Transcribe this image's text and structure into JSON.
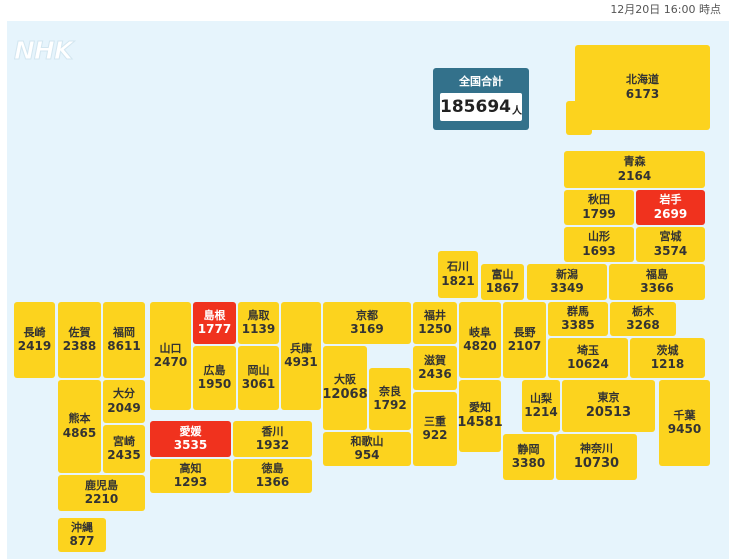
{
  "timestamp": "12月20日 16:00 時点",
  "logo": "NHK",
  "total": {
    "label": "全国合計",
    "value": "185694",
    "unit": "人"
  },
  "colors": {
    "default": "#fcd31e",
    "highlight": "#f0321e",
    "background": "#e6f4fc",
    "total_box": "#33718b"
  },
  "prefectures": {
    "hokkaido": {
      "name": "北海道",
      "value": "6173"
    },
    "aomori": {
      "name": "青森",
      "value": "2164"
    },
    "akita": {
      "name": "秋田",
      "value": "1799"
    },
    "iwate": {
      "name": "岩手",
      "value": "2699",
      "highlight": true
    },
    "yamagata": {
      "name": "山形",
      "value": "1693"
    },
    "miyagi": {
      "name": "宮城",
      "value": "3574"
    },
    "ishikawa": {
      "name": "石川",
      "value": "1821"
    },
    "toyama": {
      "name": "富山",
      "value": "1867"
    },
    "niigata": {
      "name": "新潟",
      "value": "3349"
    },
    "fukushima": {
      "name": "福島",
      "value": "3366"
    },
    "nagasaki": {
      "name": "長崎",
      "value": "2419"
    },
    "saga": {
      "name": "佐賀",
      "value": "2388"
    },
    "fukuoka": {
      "name": "福岡",
      "value": "8611"
    },
    "yamaguchi": {
      "name": "山口",
      "value": "2470"
    },
    "shimane": {
      "name": "島根",
      "value": "1777",
      "highlight": true
    },
    "tottori": {
      "name": "鳥取",
      "value": "1139"
    },
    "hyogo": {
      "name": "兵庫",
      "value": "4931"
    },
    "kyoto": {
      "name": "京都",
      "value": "3169"
    },
    "fukui": {
      "name": "福井",
      "value": "1250"
    },
    "gifu": {
      "name": "岐阜",
      "value": "4820"
    },
    "nagano": {
      "name": "長野",
      "value": "2107"
    },
    "gunma": {
      "name": "群馬",
      "value": "3385"
    },
    "tochigi": {
      "name": "栃木",
      "value": "3268"
    },
    "hiroshima": {
      "name": "広島",
      "value": "1950"
    },
    "okayama": {
      "name": "岡山",
      "value": "3061"
    },
    "osaka": {
      "name": "大阪",
      "value": "12068"
    },
    "shiga": {
      "name": "滋賀",
      "value": "2436"
    },
    "saitama": {
      "name": "埼玉",
      "value": "10624"
    },
    "ibaraki": {
      "name": "茨城",
      "value": "1218"
    },
    "oita": {
      "name": "大分",
      "value": "2049"
    },
    "kumamoto": {
      "name": "熊本",
      "value": "4865"
    },
    "nara": {
      "name": "奈良",
      "value": "1792"
    },
    "aichi": {
      "name": "愛知",
      "value": "14581"
    },
    "yamanashi": {
      "name": "山梨",
      "value": "1214"
    },
    "tokyo": {
      "name": "東京",
      "value": "20513"
    },
    "chiba": {
      "name": "千葉",
      "value": "9450"
    },
    "miyazaki": {
      "name": "宮崎",
      "value": "2435"
    },
    "ehime": {
      "name": "愛媛",
      "value": "3535",
      "highlight": true
    },
    "kagawa": {
      "name": "香川",
      "value": "1932"
    },
    "mie": {
      "name": "三重",
      "value": "922"
    },
    "wakayama": {
      "name": "和歌山",
      "value": "954"
    },
    "kochi": {
      "name": "高知",
      "value": "1293"
    },
    "tokushima": {
      "name": "徳島",
      "value": "1366"
    },
    "shizuoka": {
      "name": "静岡",
      "value": "3380"
    },
    "kanagawa": {
      "name": "神奈川",
      "value": "10730"
    },
    "kagoshima": {
      "name": "鹿児島",
      "value": "2210"
    },
    "okinawa": {
      "name": "沖縄",
      "value": "877"
    }
  }
}
